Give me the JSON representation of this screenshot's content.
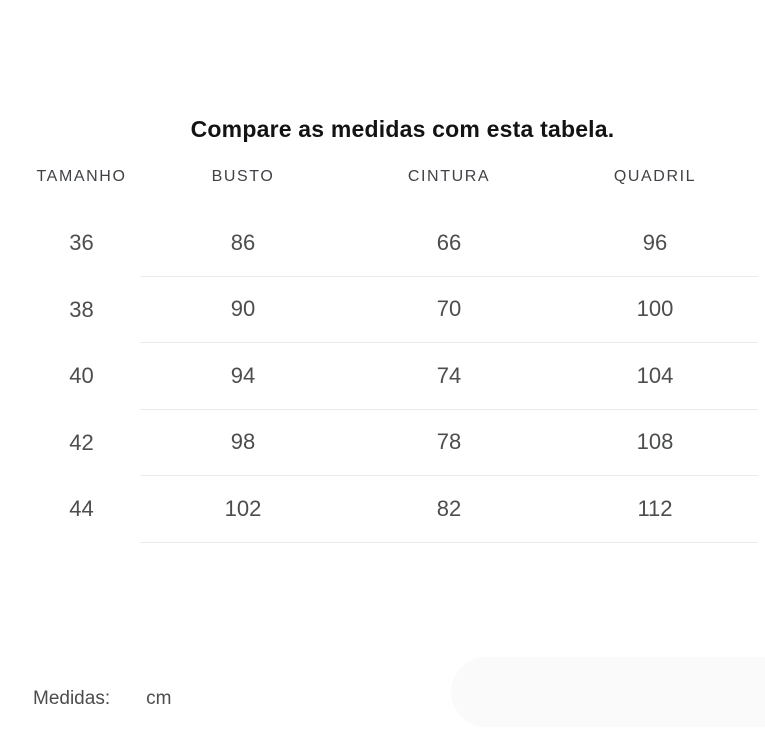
{
  "title": "Compare as medidas com esta tabela.",
  "table": {
    "columns": [
      "TAMANHO",
      "BUSTO",
      "CINTURA",
      "QUADRIL"
    ],
    "rows": [
      [
        "36",
        "86",
        "66",
        "96"
      ],
      [
        "38",
        "90",
        "70",
        "100"
      ],
      [
        "40",
        "94",
        "74",
        "104"
      ],
      [
        "42",
        "98",
        "78",
        "108"
      ],
      [
        "44",
        "102",
        "82",
        "112"
      ]
    ]
  },
  "footer": {
    "label": "Medidas:",
    "unit": "cm"
  },
  "colors": {
    "title_text": "#131313",
    "body_text": "#4b4d4f",
    "separator": "#ebebeb",
    "highlight": "#fafafa"
  }
}
